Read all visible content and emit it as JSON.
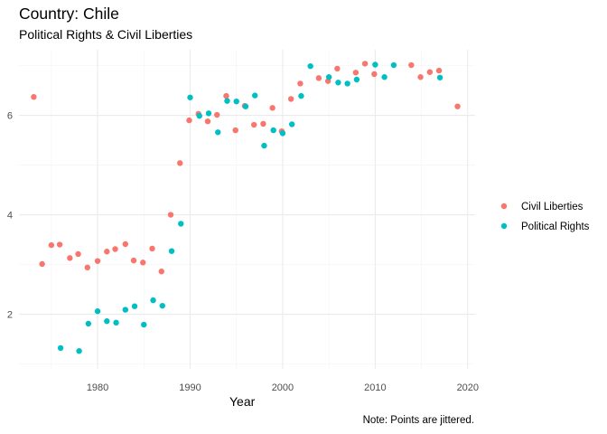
{
  "chart_data": {
    "type": "scatter",
    "title": "Country: Chile",
    "subtitle": "Political Rights & Civil Liberties",
    "xlabel": "Year",
    "ylabel": "",
    "caption": "Note: Points are jittered.",
    "xlim": [
      1971.5,
      2020.8
    ],
    "ylim": [
      0.9,
      7.32
    ],
    "x_ticks": [
      1980,
      1990,
      2000,
      2010,
      2020
    ],
    "y_ticks": [
      2,
      4,
      6
    ],
    "grid": true,
    "legend_position": "right",
    "series": [
      {
        "name": "Civil Liberties",
        "color": "#F8766D",
        "points": [
          [
            1973.1,
            6.37
          ],
          [
            1974.0,
            3.01
          ],
          [
            1975.0,
            3.39
          ],
          [
            1975.9,
            3.4
          ],
          [
            1977.0,
            3.13
          ],
          [
            1977.9,
            3.21
          ],
          [
            1978.9,
            2.94
          ],
          [
            1980.0,
            3.07
          ],
          [
            1981.0,
            3.26
          ],
          [
            1981.9,
            3.31
          ],
          [
            1983.0,
            3.41
          ],
          [
            1983.9,
            3.08
          ],
          [
            1984.9,
            3.04
          ],
          [
            1985.9,
            3.32
          ],
          [
            1986.9,
            2.86
          ],
          [
            1987.9,
            4.0
          ],
          [
            1988.9,
            5.04
          ],
          [
            1989.9,
            5.9
          ],
          [
            1990.9,
            6.03
          ],
          [
            1991.9,
            5.88
          ],
          [
            1992.9,
            6.01
          ],
          [
            1993.9,
            6.39
          ],
          [
            1994.9,
            5.7
          ],
          [
            1995.9,
            6.19
          ],
          [
            1996.9,
            5.81
          ],
          [
            1997.9,
            5.83
          ],
          [
            1998.9,
            6.15
          ],
          [
            1999.9,
            5.68
          ],
          [
            2000.9,
            6.33
          ],
          [
            2001.9,
            6.64
          ],
          [
            2003.9,
            6.75
          ],
          [
            2004.9,
            6.69
          ],
          [
            2005.9,
            6.94
          ],
          [
            2007.9,
            6.86
          ],
          [
            2008.9,
            7.04
          ],
          [
            2009.9,
            6.83
          ],
          [
            2013.9,
            7.01
          ],
          [
            2014.9,
            6.77
          ],
          [
            2015.9,
            6.87
          ],
          [
            2016.9,
            6.9
          ],
          [
            2018.9,
            6.18
          ]
        ]
      },
      {
        "name": "Political Rights",
        "color": "#00BFC4",
        "points": [
          [
            1976.0,
            1.32
          ],
          [
            1978.0,
            1.26
          ],
          [
            1979.0,
            1.81
          ],
          [
            1980.0,
            2.06
          ],
          [
            1981.0,
            1.86
          ],
          [
            1982.0,
            1.83
          ],
          [
            1983.0,
            2.09
          ],
          [
            1984.0,
            2.16
          ],
          [
            1985.0,
            1.79
          ],
          [
            1986.0,
            2.28
          ],
          [
            1987.0,
            2.17
          ],
          [
            1988.0,
            3.27
          ],
          [
            1989.0,
            3.82
          ],
          [
            1990.0,
            6.36
          ],
          [
            1991.0,
            5.99
          ],
          [
            1992.0,
            6.04
          ],
          [
            1993.0,
            5.66
          ],
          [
            1994.0,
            6.29
          ],
          [
            1995.0,
            6.28
          ],
          [
            1996.0,
            6.18
          ],
          [
            1997.0,
            6.4
          ],
          [
            1998.0,
            5.39
          ],
          [
            1999.0,
            5.7
          ],
          [
            2000.0,
            5.64
          ],
          [
            2001.0,
            5.82
          ],
          [
            2002.0,
            6.39
          ],
          [
            2003.0,
            6.99
          ],
          [
            2005.0,
            6.77
          ],
          [
            2006.0,
            6.66
          ],
          [
            2007.0,
            6.64
          ],
          [
            2008.0,
            6.72
          ],
          [
            2010.0,
            7.02
          ],
          [
            2011.0,
            6.77
          ],
          [
            2012.0,
            7.01
          ],
          [
            2017.0,
            6.76
          ]
        ]
      }
    ]
  }
}
